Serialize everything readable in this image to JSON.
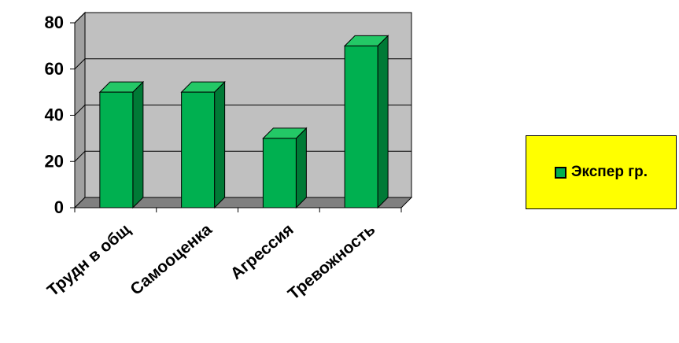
{
  "chart_data": {
    "type": "bar",
    "categories": [
      "Трудн в общ",
      "Самооценка",
      "Агрессия",
      "Тревожность"
    ],
    "series": [
      {
        "name": "Экспер гр.",
        "values": [
          50,
          50,
          30,
          70
        ]
      }
    ],
    "ylim": [
      0,
      80
    ],
    "yticks": [
      0,
      20,
      40,
      60,
      80
    ],
    "grid": true,
    "legend_position": "right",
    "colors": {
      "bar_front": "#00b050",
      "bar_side": "#007a36",
      "bar_top": "#23c866",
      "wall": "#c0c0c0",
      "floor": "#808080",
      "legend_bg": "#ffff00"
    }
  }
}
